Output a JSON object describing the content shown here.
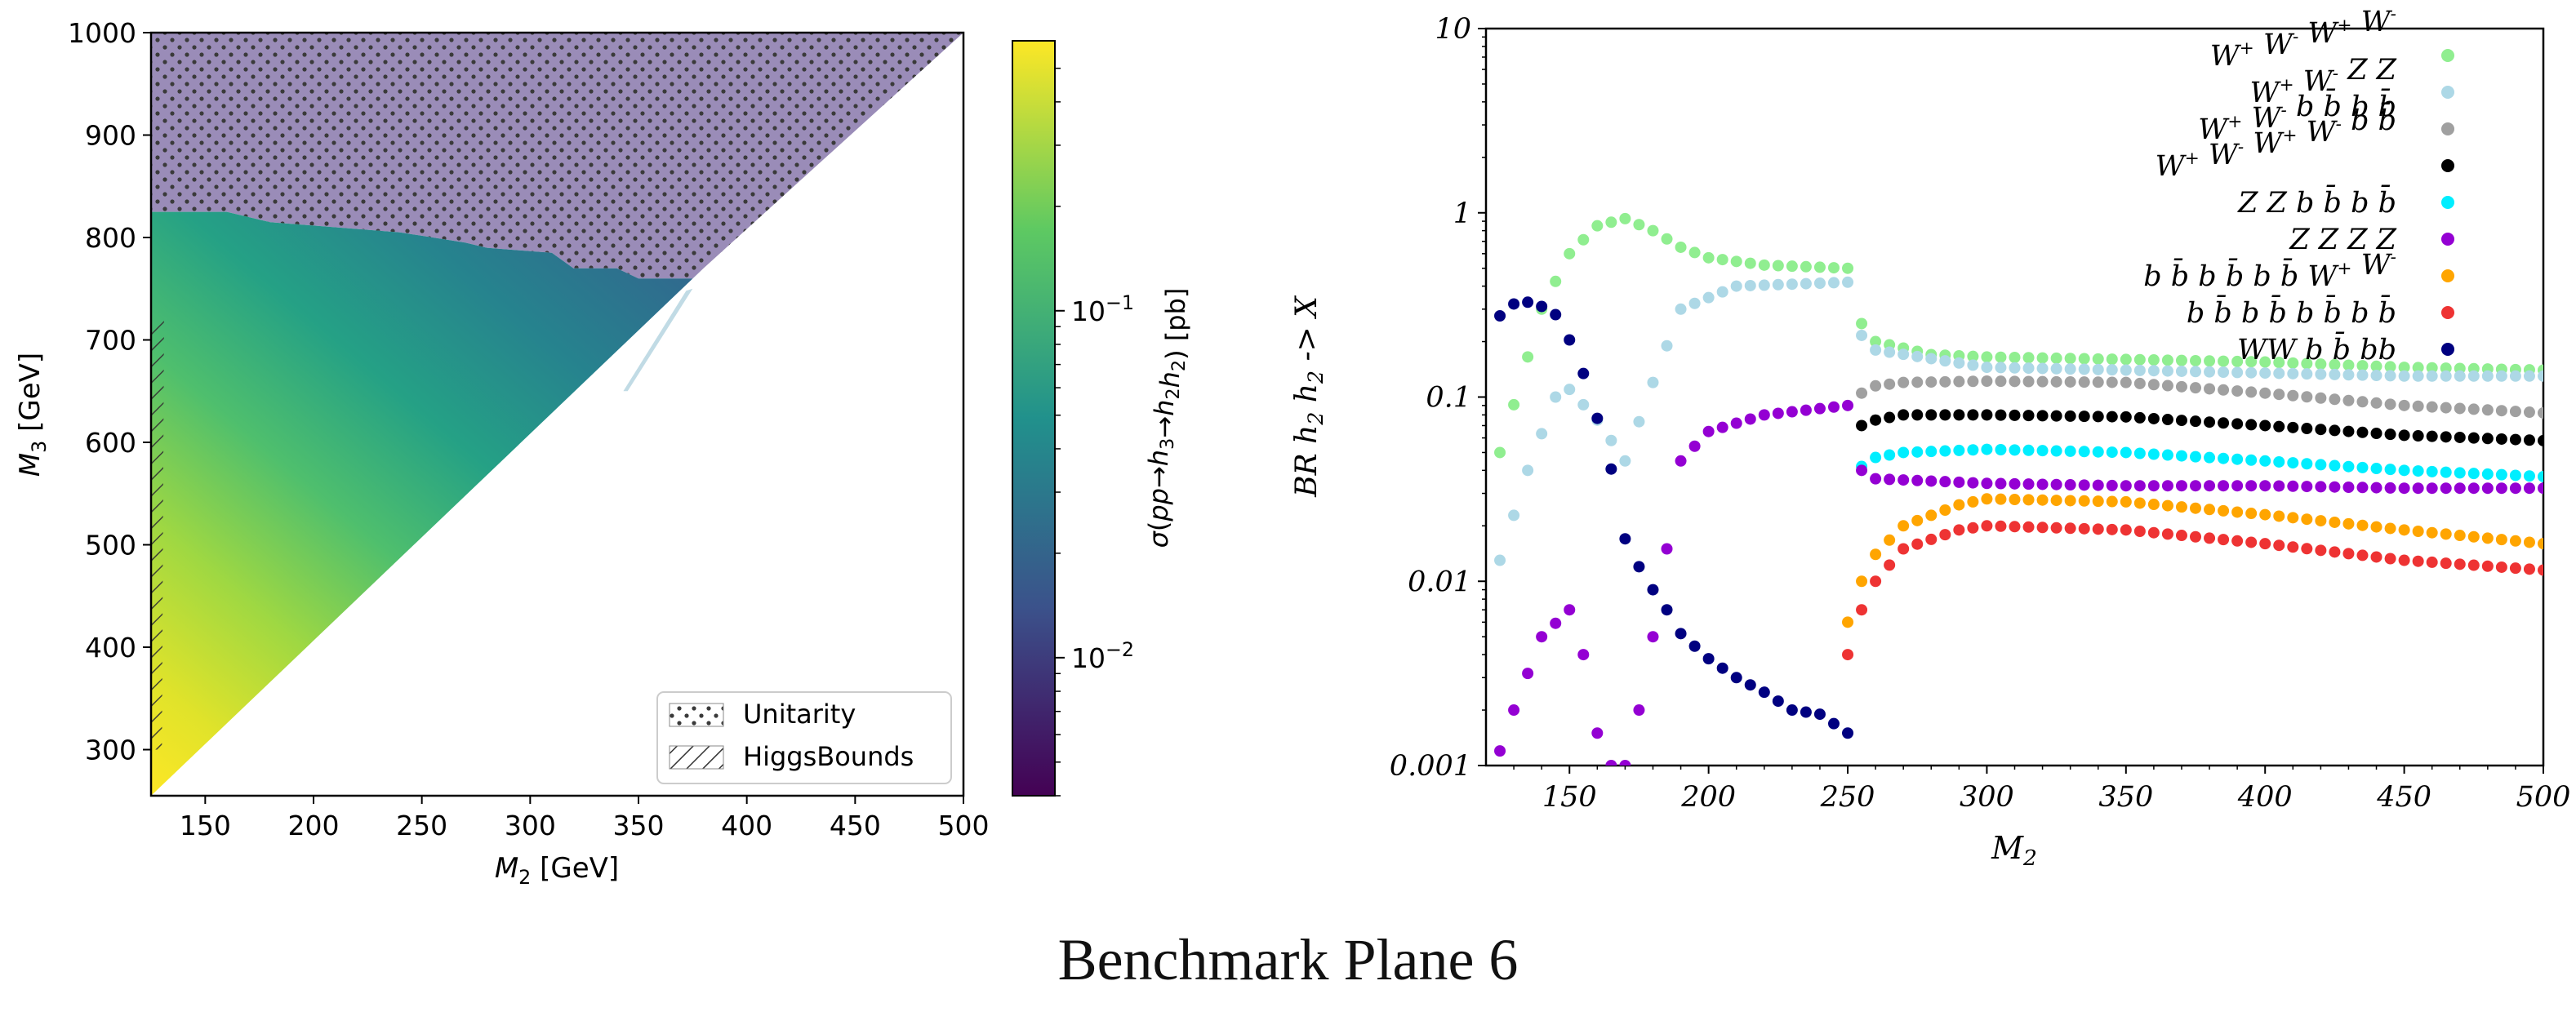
{
  "caption": "Benchmark Plane 6",
  "chart_data": [
    {
      "type": "heatmap",
      "xlabel": "M_2 [GeV]",
      "ylabel": "M_3 [GeV]",
      "xlim": [
        125,
        500
      ],
      "ylim": [
        255,
        1000
      ],
      "xticks": [
        150,
        200,
        250,
        300,
        350,
        400,
        450,
        500
      ],
      "yticks": [
        300,
        400,
        500,
        600,
        700,
        800,
        900,
        1000
      ],
      "colorbar": {
        "label": "σ(pp→h3→h2h2) [pb]",
        "scale": "log",
        "range": [
          0.004,
          0.6
        ],
        "major_ticks": [
          {
            "value": 0.1,
            "label": "10^-1"
          },
          {
            "value": 0.01,
            "label": "10^-2"
          }
        ],
        "colormap": [
          "#440154",
          "#3b528b",
          "#21918c",
          "#5ec962",
          "#fde725"
        ]
      },
      "unitarity_boundary": {
        "M2": [
          125,
          160,
          180,
          240,
          270,
          280,
          310,
          320,
          340,
          350,
          375,
          380
        ],
        "M3": [
          825,
          825,
          815,
          805,
          795,
          790,
          785,
          770,
          770,
          760,
          760,
          770
        ]
      },
      "legend": {
        "position": "lower-right",
        "entries": [
          {
            "label": "Unitarity",
            "hatch": "dots"
          },
          {
            "label": "HiggsBounds",
            "hatch": "diagonal"
          }
        ]
      }
    },
    {
      "type": "scatter",
      "xlabel": "M_2",
      "ylabel": "BR h_2 h_2 -> X",
      "xscale": "linear",
      "yscale": "log",
      "xlim": [
        120,
        500
      ],
      "ylim": [
        0.001,
        10
      ],
      "xticks": [
        150,
        200,
        250,
        300,
        350,
        400,
        450,
        500
      ],
      "yticks": [
        {
          "value": 0.001,
          "label": "0.001"
        },
        {
          "value": 0.01,
          "label": "0.01"
        },
        {
          "value": 0.1,
          "label": "0.1"
        },
        {
          "value": 1,
          "label": "1"
        },
        {
          "value": 10,
          "label": "10"
        }
      ],
      "legend_position": "top-right",
      "series": [
        {
          "name": "W+ W- W+ W-",
          "label_base": [
            "W",
            "W",
            "W",
            "W"
          ],
          "label_sup": [
            "+",
            "-",
            "+",
            "-"
          ],
          "color": "#90ee90",
          "x": [
            125,
            140,
            150,
            160,
            170,
            180,
            190,
            200,
            220,
            250,
            251,
            260,
            280,
            300,
            350,
            400,
            450,
            500
          ],
          "y": [
            0.05,
            0.3,
            0.6,
            0.85,
            0.93,
            0.8,
            0.65,
            0.57,
            0.52,
            0.5,
            0.3,
            0.2,
            0.17,
            0.165,
            0.16,
            0.155,
            0.145,
            0.14
          ]
        },
        {
          "name": "W+ W- Z Z",
          "color": "#add8e6",
          "x": [
            125,
            135,
            145,
            150,
            160,
            170,
            180,
            190,
            210,
            250,
            251,
            260,
            300,
            350,
            400,
            450,
            500
          ],
          "y": [
            0.013,
            0.04,
            0.1,
            0.11,
            0.075,
            0.045,
            0.12,
            0.3,
            0.4,
            0.42,
            0.25,
            0.18,
            0.145,
            0.14,
            0.135,
            0.13,
            0.13
          ]
        },
        {
          "name": "W+ W- b b̄ b b̄",
          "color": "#a0a0a0",
          "x": [
            251,
            255,
            260,
            270,
            300,
            350,
            400,
            450,
            500
          ],
          "y": [
            0.09,
            0.105,
            0.115,
            0.12,
            0.122,
            0.12,
            0.105,
            0.09,
            0.082
          ]
        },
        {
          "name": "W+ W- W+ W- b b̄",
          "color": "#000000",
          "x": [
            251,
            255,
            260,
            270,
            300,
            350,
            400,
            450,
            500
          ],
          "y": [
            0.055,
            0.07,
            0.075,
            0.08,
            0.08,
            0.078,
            0.07,
            0.062,
            0.058
          ]
        },
        {
          "name": "Z Z b b̄ b b̄",
          "color": "#00eeff",
          "x": [
            251,
            255,
            260,
            270,
            300,
            350,
            400,
            450,
            500
          ],
          "y": [
            0.03,
            0.042,
            0.047,
            0.05,
            0.052,
            0.05,
            0.045,
            0.04,
            0.037
          ]
        },
        {
          "name": "Z Z Z Z",
          "color": "#9400d3",
          "x": [
            125,
            130,
            140,
            150,
            155,
            160,
            165,
            170,
            175,
            180,
            190,
            200,
            220,
            250,
            251,
            255,
            260,
            300,
            350,
            400,
            450,
            500
          ],
          "y": [
            0.0012,
            0.002,
            0.005,
            0.007,
            0.004,
            0.0015,
            0.001,
            0.001,
            0.002,
            0.005,
            0.045,
            0.065,
            0.08,
            0.09,
            0.05,
            0.04,
            0.036,
            0.034,
            0.033,
            0.033,
            0.032,
            0.032
          ]
        },
        {
          "name": "b b̄ b b̄ b b̄ W+ W-",
          "color": "#ffa500",
          "x": [
            250,
            255,
            260,
            270,
            290,
            300,
            350,
            400,
            450,
            500
          ],
          "y": [
            0.006,
            0.01,
            0.014,
            0.02,
            0.026,
            0.028,
            0.027,
            0.023,
            0.019,
            0.016
          ]
        },
        {
          "name": "b b̄ b b̄ b b̄ b b̄",
          "color": "#ee3333",
          "x": [
            250,
            255,
            260,
            270,
            290,
            300,
            350,
            400,
            450,
            500
          ],
          "y": [
            0.004,
            0.007,
            0.01,
            0.015,
            0.019,
            0.02,
            0.019,
            0.016,
            0.013,
            0.0115
          ]
        },
        {
          "name": "WW b b̄ bb",
          "color": "#000080",
          "x": [
            123,
            130,
            137,
            145,
            152,
            158,
            164,
            168,
            170,
            175,
            180,
            185,
            190,
            200,
            210,
            220,
            230,
            240,
            250
          ],
          "y": [
            0.26,
            0.32,
            0.33,
            0.28,
            0.18,
            0.1,
            0.045,
            0.03,
            0.017,
            0.012,
            0.009,
            0.007,
            0.0052,
            0.0038,
            0.003,
            0.0025,
            0.002,
            0.0019,
            0.0015
          ]
        }
      ]
    }
  ]
}
